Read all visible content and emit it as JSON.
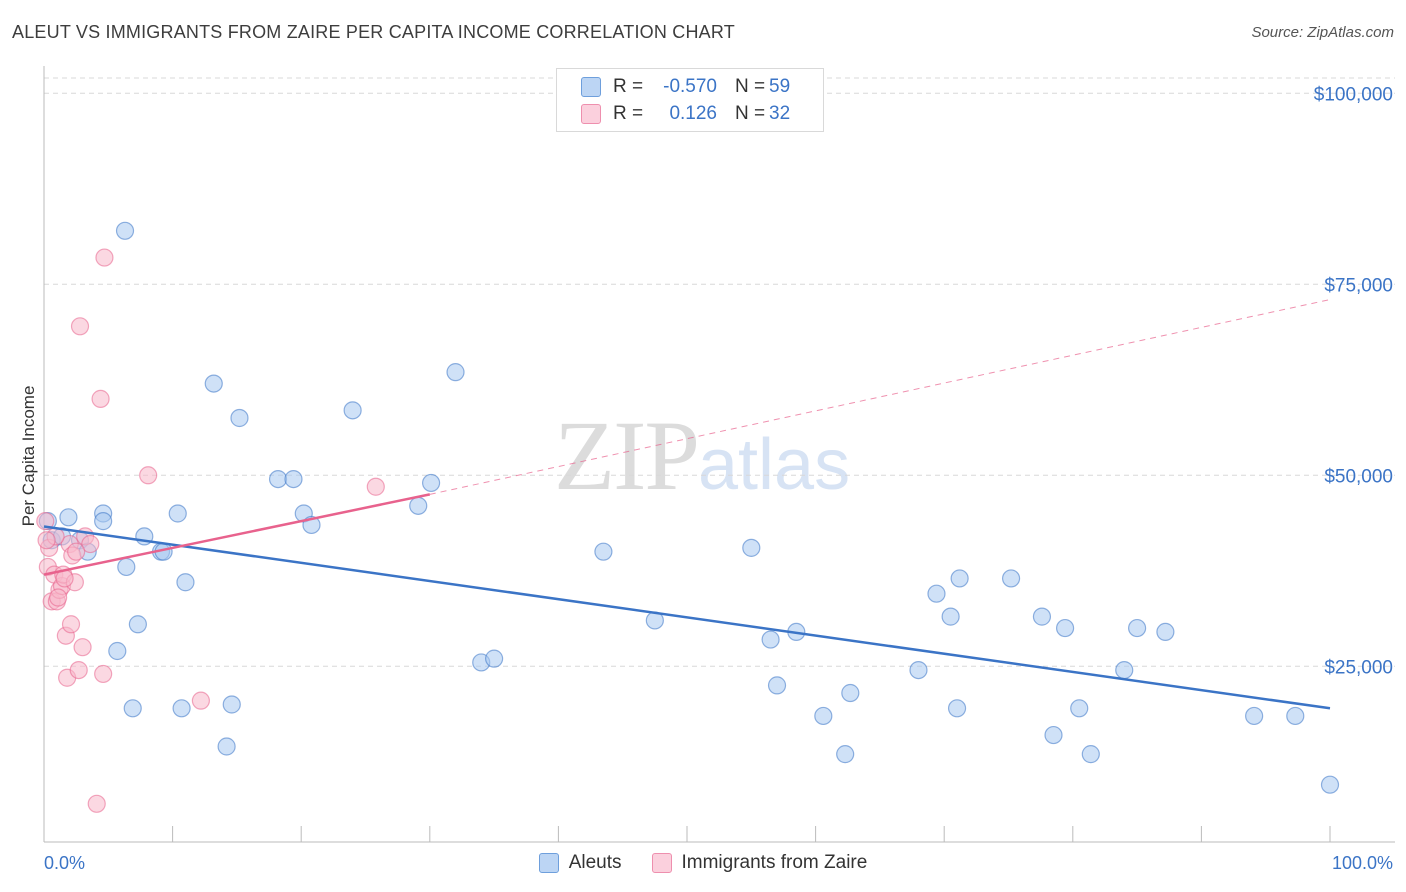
{
  "title": "ALEUT VS IMMIGRANTS FROM ZAIRE PER CAPITA INCOME CORRELATION CHART",
  "source": "Source: ZipAtlas.com",
  "watermark": {
    "zip": "ZIP",
    "atlas": "atlas"
  },
  "legend": {
    "rows": [
      {
        "r_label": "R =",
        "r_value": "-0.570",
        "n_label": "N =",
        "n_value": "59",
        "color": "#a8c8f0"
      },
      {
        "r_label": "R =",
        "r_value": "0.126",
        "n_label": "N =",
        "n_value": "32",
        "color": "#f7b8cb"
      }
    ]
  },
  "bottom_legend": [
    {
      "label": "Aleuts",
      "color": "#a8c8f0"
    },
    {
      "label": "Immigrants from Zaire",
      "color": "#f7b8cb"
    }
  ],
  "chart_data": {
    "type": "scatter",
    "title": "ALEUT VS IMMIGRANTS FROM ZAIRE PER CAPITA INCOME CORRELATION CHART",
    "xlabel": "",
    "ylabel": "Per Capita Income",
    "x_tick_labels": [
      "0.0%",
      "100.0%"
    ],
    "y_tick_labels": [
      "$25,000",
      "$50,000",
      "$75,000",
      "$100,000"
    ],
    "y_ticks": [
      25000,
      50000,
      75000,
      100000
    ],
    "xlim": [
      0,
      100
    ],
    "ylim": [
      2000,
      102000
    ],
    "grid": true,
    "legend_position": "top-center",
    "series": [
      {
        "name": "Aleuts",
        "color": "#3b74c6",
        "fill": "#a8c8f0",
        "points": [
          [
            0.3,
            44000
          ],
          [
            0.6,
            41500
          ],
          [
            1.4,
            42000
          ],
          [
            1.9,
            44500
          ],
          [
            2.8,
            41500
          ],
          [
            3.4,
            40000
          ],
          [
            4.6,
            45000
          ],
          [
            4.6,
            44000
          ],
          [
            6.3,
            82000
          ],
          [
            6.4,
            38000
          ],
          [
            5.7,
            27000
          ],
          [
            6.9,
            19500
          ],
          [
            7.3,
            30500
          ],
          [
            7.8,
            42000
          ],
          [
            9.1,
            40000
          ],
          [
            9.3,
            40000
          ],
          [
            10.4,
            45000
          ],
          [
            10.7,
            19500
          ],
          [
            11.0,
            36000
          ],
          [
            13.2,
            62000
          ],
          [
            15.2,
            57500
          ],
          [
            14.2,
            14500
          ],
          [
            14.6,
            20000
          ],
          [
            18.2,
            49500
          ],
          [
            19.4,
            49500
          ],
          [
            20.2,
            45000
          ],
          [
            20.8,
            43500
          ],
          [
            24.0,
            58500
          ],
          [
            29.1,
            46000
          ],
          [
            30.1,
            49000
          ],
          [
            34.0,
            25500
          ],
          [
            35.0,
            26000
          ],
          [
            43.5,
            40000
          ],
          [
            47.5,
            31000
          ],
          [
            55.0,
            40500
          ],
          [
            56.5,
            28500
          ],
          [
            57.0,
            22500
          ],
          [
            58.5,
            29500
          ],
          [
            60.6,
            18500
          ],
          [
            62.3,
            13500
          ],
          [
            62.7,
            21500
          ],
          [
            68.0,
            24500
          ],
          [
            69.4,
            34500
          ],
          [
            70.5,
            31500
          ],
          [
            71.0,
            19500
          ],
          [
            71.2,
            36500
          ],
          [
            75.2,
            36500
          ],
          [
            77.6,
            31500
          ],
          [
            78.5,
            16000
          ],
          [
            79.4,
            30000
          ],
          [
            80.5,
            19500
          ],
          [
            81.4,
            13500
          ],
          [
            84.0,
            24500
          ],
          [
            85.0,
            30000
          ],
          [
            87.2,
            29500
          ],
          [
            94.1,
            18500
          ],
          [
            97.3,
            18500
          ],
          [
            100.0,
            9500
          ],
          [
            32.0,
            63500
          ]
        ]
      },
      {
        "name": "Immigrants from Zaire",
        "color": "#e8628d",
        "fill": "#f7b8cb",
        "points": [
          [
            0.1,
            44000
          ],
          [
            0.3,
            38000
          ],
          [
            0.6,
            33500
          ],
          [
            0.8,
            37000
          ],
          [
            1.0,
            33500
          ],
          [
            1.2,
            35000
          ],
          [
            1.4,
            35500
          ],
          [
            1.5,
            37000
          ],
          [
            1.7,
            29000
          ],
          [
            1.8,
            23500
          ],
          [
            2.0,
            41000
          ],
          [
            2.1,
            30500
          ],
          [
            2.2,
            39500
          ],
          [
            2.4,
            36000
          ],
          [
            2.7,
            24500
          ],
          [
            3.0,
            27500
          ],
          [
            3.2,
            42000
          ],
          [
            3.6,
            41000
          ],
          [
            4.1,
            7000
          ],
          [
            4.4,
            60000
          ],
          [
            4.6,
            24000
          ],
          [
            4.7,
            78500
          ],
          [
            2.8,
            69500
          ],
          [
            8.1,
            50000
          ],
          [
            12.2,
            20500
          ],
          [
            25.8,
            48500
          ],
          [
            0.4,
            40500
          ],
          [
            0.9,
            42000
          ],
          [
            1.6,
            36500
          ],
          [
            2.5,
            40000
          ],
          [
            1.1,
            34000
          ],
          [
            0.2,
            41500
          ]
        ]
      }
    ],
    "trend_lines": [
      {
        "series": "Aleuts",
        "from": [
          0,
          43300
        ],
        "to": [
          100,
          19500
        ],
        "style": "solid"
      },
      {
        "series": "Immigrants from Zaire",
        "from": [
          0,
          37000
        ],
        "to": [
          30,
          47500
        ],
        "style": "solid"
      },
      {
        "series": "Immigrants from Zaire",
        "from": [
          30,
          47500
        ],
        "to": [
          100,
          73000
        ],
        "style": "dashed"
      }
    ]
  }
}
